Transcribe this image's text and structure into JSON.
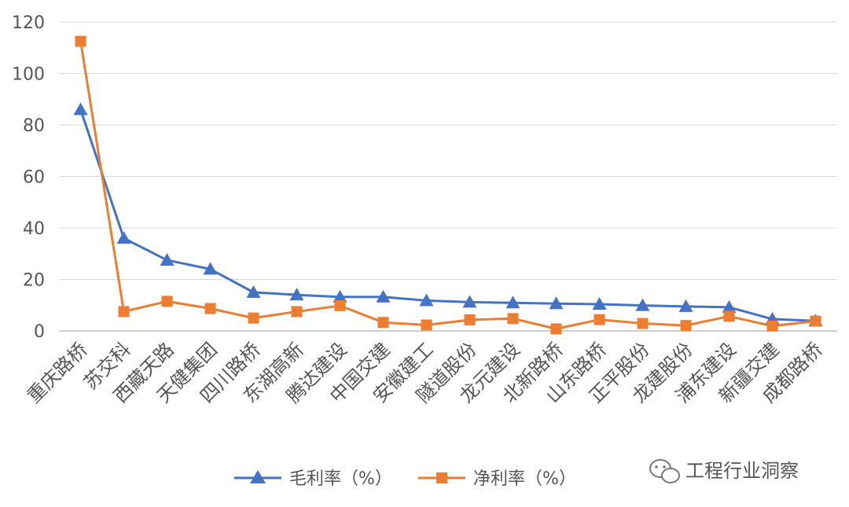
{
  "chart_data": {
    "type": "line",
    "categories": [
      "重庆路桥",
      "苏交科",
      "西藏天路",
      "天健集团",
      "四川路桥",
      "东湖高新",
      "腾达建设",
      "中国交建",
      "安徽建工",
      "隧道股份",
      "龙元建设",
      "北新路桥",
      "山东路桥",
      "正平股份",
      "龙建股份",
      "浦东建设",
      "新疆交建",
      "成都路桥"
    ],
    "series": [
      {
        "name": "毛利率（%）",
        "color": "#4472C4",
        "marker": "triangle",
        "values": [
          86,
          36,
          27.5,
          24,
          15,
          14,
          13.2,
          13.2,
          11.8,
          11.2,
          10.9,
          10.6,
          10.4,
          9.9,
          9.5,
          9.2,
          4.6,
          3.9
        ]
      },
      {
        "name": "净利率（%）",
        "color": "#ED7D31",
        "marker": "square",
        "values": [
          112.5,
          7.5,
          11.5,
          8.7,
          5,
          7.5,
          9.8,
          3.3,
          2.3,
          4.3,
          4.8,
          0.8,
          4.4,
          2.9,
          2.1,
          5.7,
          1.9,
          3.8
        ]
      }
    ],
    "yticks": [
      "0",
      "20",
      "40",
      "60",
      "80",
      "100",
      "120"
    ],
    "ylim": [
      0,
      120
    ],
    "grid": true,
    "legend": "bottom"
  },
  "watermark": {
    "text": "工程行业洞察",
    "icon": "wechat-icon"
  }
}
